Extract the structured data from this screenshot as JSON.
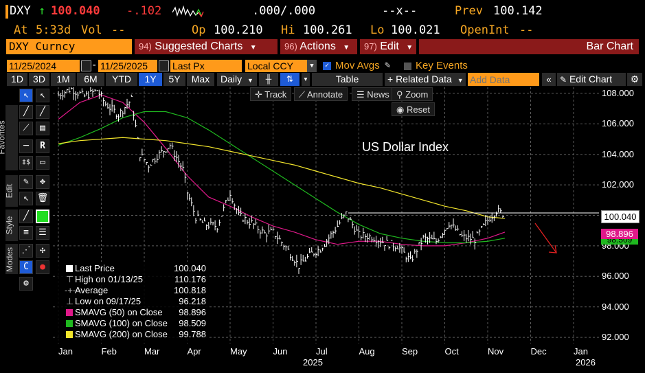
{
  "quote": {
    "ticker": "DXY",
    "arrow": "↑",
    "last": "100.040",
    "change": "-.102",
    "bid_ask": ".000/.000",
    "x_field": "--x--",
    "prev_label": "Prev",
    "prev": "100.142",
    "at_label": "At",
    "time": "5:33d",
    "vol_label": "Vol",
    "vol": "--",
    "op_label": "Op",
    "open": "100.210",
    "hi_label": "Hi",
    "high": "100.261",
    "lo_label": "Lo",
    "low": "100.021",
    "oi_label": "OpenInt",
    "oi": "--"
  },
  "menubar": {
    "security": "DXY Curncy",
    "items": [
      {
        "num": "94)",
        "label": "Suggested Charts"
      },
      {
        "num": "96)",
        "label": "Actions"
      },
      {
        "num": "97)",
        "label": "Edit"
      }
    ],
    "chart_type": "Bar Chart"
  },
  "controls": {
    "start_date": "11/25/2024",
    "end_date": "11/25/2025",
    "field": "Last Px",
    "currency": "Local CCY",
    "mov_avgs": "Mov Avgs",
    "key_events": "Key Events"
  },
  "ranges": [
    "1D",
    "3D",
    "1M",
    "6M",
    "YTD",
    "1Y",
    "5Y",
    "Max"
  ],
  "range_selected": "1Y",
  "toolbar2": {
    "period": "Daily",
    "table": "Table",
    "related": "+ Related Data",
    "add_data_placeholder": "Add Data",
    "edit_chart": "Edit Chart"
  },
  "chart_tools": {
    "track": "Track",
    "annotate": "Annotate",
    "news": "News",
    "zoom": "Zoom",
    "reset": "Reset"
  },
  "side_labels": [
    "Favorites",
    "Edit",
    "Style",
    "Modes"
  ],
  "legend": {
    "rows": [
      {
        "name": "Last Price",
        "value": "100.040",
        "color": "#ffffff"
      },
      {
        "name": "High on 01/13/25",
        "value": "110.176",
        "color": ""
      },
      {
        "name": "Average",
        "value": "100.818",
        "color": ""
      },
      {
        "name": "Low on 09/17/25",
        "value": "96.218",
        "color": ""
      },
      {
        "name": "SMAVG (50)  on Close",
        "value": "98.896",
        "color": "#e0198a"
      },
      {
        "name": "SMAVG (100)  on Close",
        "value": "98.509",
        "color": "#1fb81f"
      },
      {
        "name": "SMAVG (200)  on Close",
        "value": "99.788",
        "color": "#f2e52c"
      }
    ]
  },
  "price_tags": {
    "last": "100.040",
    "sma50": "98.896",
    "sma100": "98.509"
  },
  "chart_data": {
    "type": "line",
    "title": "US Dollar Index",
    "x_months": [
      "Jan",
      "Feb",
      "Mar",
      "Apr",
      "May",
      "Jun",
      "Jul",
      "Aug",
      "Sep",
      "Oct",
      "Nov",
      "Dec",
      "Jan"
    ],
    "year_labels": [
      "2025",
      "2026"
    ],
    "y_ticks": [
      "108.000",
      "106.000",
      "104.000",
      "102.000",
      "100.000",
      "98.000",
      "96.000",
      "94.000",
      "92.000"
    ],
    "ylim": [
      91.6,
      108.4
    ],
    "grid": true,
    "series": [
      {
        "name": "Last Price",
        "color": "#ffffff",
        "x": [
          0.0,
          0.3,
          0.6,
          0.9,
          1.1,
          1.4,
          1.7,
          1.9,
          2.1,
          2.3,
          2.6,
          2.9,
          3.0,
          3.2,
          3.4,
          3.7,
          4.0,
          4.2,
          4.5,
          4.8,
          5.0,
          5.3,
          5.6,
          5.9,
          6.1,
          6.4,
          6.7,
          7.0,
          7.3,
          7.6,
          7.9,
          8.2,
          8.5,
          8.8,
          9.1,
          9.4,
          9.7,
          10.0,
          10.2,
          10.4
        ],
        "y": [
          107.9,
          108.3,
          107.8,
          108.2,
          107.3,
          106.6,
          107.6,
          104.0,
          103.3,
          103.9,
          104.6,
          103.0,
          101.5,
          99.9,
          99.4,
          99.3,
          101.5,
          100.0,
          99.5,
          98.8,
          98.9,
          97.9,
          96.7,
          97.5,
          97.8,
          98.9,
          100.1,
          98.7,
          98.6,
          98.2,
          98.0,
          97.0,
          98.5,
          98.3,
          99.5,
          98.6,
          98.4,
          99.7,
          100.3,
          100.04
        ]
      },
      {
        "name": "SMAVG (50) on Close",
        "color": "#e0198a",
        "x": [
          0.0,
          0.5,
          1.0,
          1.5,
          2.0,
          2.5,
          3.0,
          3.5,
          4.0,
          4.5,
          5.0,
          5.5,
          6.0,
          6.5,
          7.0,
          7.5,
          8.0,
          8.5,
          9.0,
          9.5,
          10.0,
          10.4
        ],
        "y": [
          106.3,
          107.4,
          107.9,
          107.4,
          106.1,
          104.4,
          102.6,
          101.2,
          100.6,
          99.9,
          99.3,
          98.9,
          98.4,
          98.1,
          98.3,
          98.3,
          98.1,
          98.0,
          98.0,
          98.2,
          98.5,
          98.9
        ]
      },
      {
        "name": "SMAVG (100) on Close",
        "color": "#1fb81f",
        "x": [
          0.0,
          0.5,
          1.0,
          1.5,
          2.0,
          2.5,
          3.0,
          3.5,
          4.0,
          4.5,
          5.0,
          5.5,
          6.0,
          6.5,
          7.0,
          7.5,
          8.0,
          8.5,
          9.0,
          9.5,
          10.0,
          10.4
        ],
        "y": [
          104.6,
          105.1,
          105.7,
          106.4,
          106.8,
          106.8,
          106.4,
          105.6,
          104.7,
          103.8,
          102.9,
          102.0,
          101.1,
          100.2,
          99.4,
          98.8,
          98.5,
          98.3,
          98.2,
          98.2,
          98.3,
          98.5
        ]
      },
      {
        "name": "SMAVG (200) on Close",
        "color": "#f2e52c",
        "x": [
          0.0,
          0.5,
          1.0,
          1.5,
          2.0,
          2.5,
          3.0,
          3.5,
          4.0,
          4.5,
          5.0,
          5.5,
          6.0,
          6.5,
          7.0,
          7.5,
          8.0,
          8.5,
          9.0,
          9.5,
          10.0,
          10.4
        ],
        "y": [
          104.7,
          104.9,
          105.0,
          105.1,
          105.0,
          104.9,
          104.7,
          104.5,
          104.2,
          103.9,
          103.6,
          103.3,
          102.9,
          102.5,
          102.1,
          101.8,
          101.4,
          101.0,
          100.6,
          100.3,
          99.9,
          99.8
        ]
      }
    ]
  }
}
